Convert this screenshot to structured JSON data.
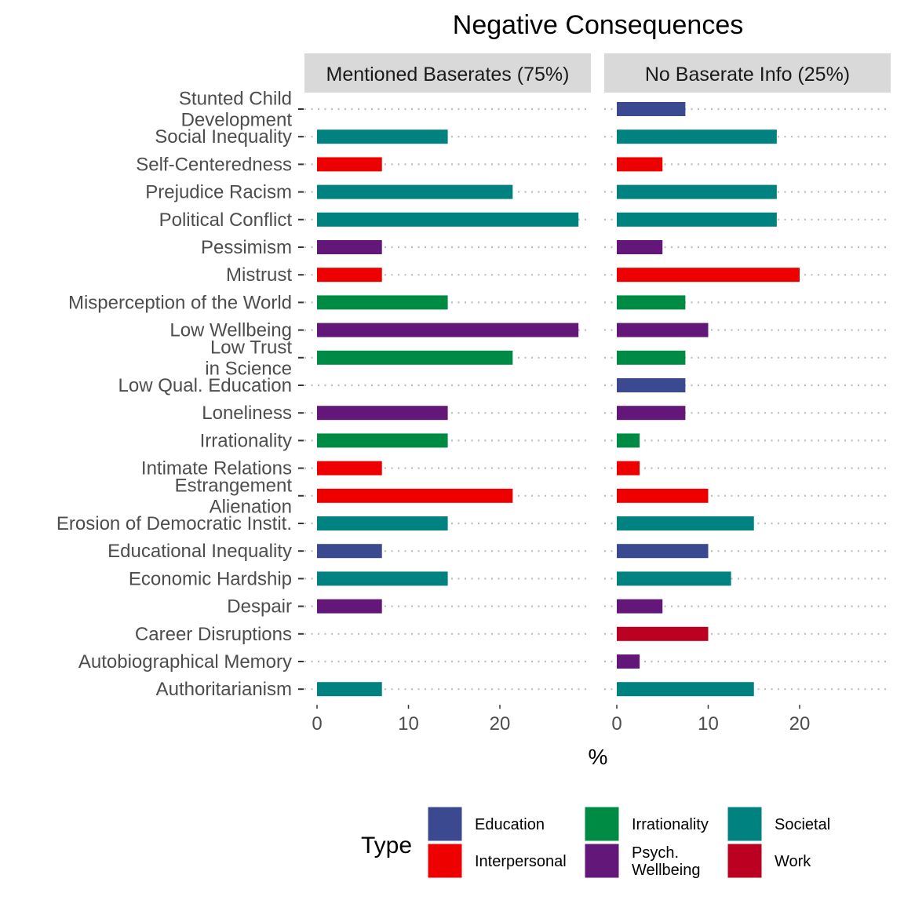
{
  "chart_data": {
    "type": "bar",
    "orientation": "horizontal",
    "title": "Negative Consequences",
    "xlabel": "%",
    "ylabel": "",
    "xlim": [
      0,
      28.8
    ],
    "x_ticks": [
      0,
      10,
      20
    ],
    "grid": "dotted horizontal",
    "legend_position": "bottom",
    "legend_title": "Type",
    "colors": {
      "Education": "#3b4991",
      "Interpersonal": "#ee0000",
      "Irrationality": "#008b45",
      "Psych. Wellbeing": "#631879",
      "Societal": "#008280",
      "Work": "#bb0021"
    },
    "legend": [
      {
        "type": "Education",
        "label": "Education"
      },
      {
        "type": "Interpersonal",
        "label": "Interpersonal"
      },
      {
        "type": "Irrationality",
        "label": "Irrationality"
      },
      {
        "type": "Psych. Wellbeing",
        "label": "Psych.\nWellbeing"
      },
      {
        "type": "Societal",
        "label": "Societal"
      },
      {
        "type": "Work",
        "label": "Work"
      }
    ],
    "categories": [
      "Stunted Child\nDevelopment",
      "Social Inequality",
      "Self-Centeredness",
      "Prejudice Racism",
      "Political Conflict",
      "Pessimism",
      "Mistrust",
      "Misperception of the World",
      "Low Wellbeing",
      "Low Trust\nin Science",
      "Low Qual. Education",
      "Loneliness",
      "Irrationality",
      "Intimate Relations",
      "Estrangement\nAlienation",
      "Erosion of Democratic Instit.",
      "Educational Inequality",
      "Economic Hardship",
      "Despair",
      "Career Disruptions",
      "Autobiographical Memory",
      "Authoritarianism"
    ],
    "category_types": [
      "Education",
      "Societal",
      "Interpersonal",
      "Societal",
      "Societal",
      "Psych. Wellbeing",
      "Interpersonal",
      "Irrationality",
      "Psych. Wellbeing",
      "Irrationality",
      "Education",
      "Psych. Wellbeing",
      "Irrationality",
      "Interpersonal",
      "Interpersonal",
      "Societal",
      "Education",
      "Societal",
      "Psych. Wellbeing",
      "Work",
      "Psych. Wellbeing",
      "Societal"
    ],
    "panels": [
      {
        "name": "Mentioned Baserates (75%)",
        "values": [
          0,
          14.3,
          7.1,
          21.4,
          28.6,
          7.1,
          7.1,
          14.3,
          28.6,
          21.4,
          0,
          14.3,
          14.3,
          7.1,
          21.4,
          14.3,
          7.1,
          14.3,
          7.1,
          0,
          0,
          7.1
        ]
      },
      {
        "name": "No Baserate Info (25%)",
        "values": [
          7.5,
          17.5,
          5.0,
          17.5,
          17.5,
          5.0,
          20.0,
          7.5,
          10.0,
          7.5,
          7.5,
          7.5,
          2.5,
          2.5,
          10.0,
          15.0,
          10.0,
          12.5,
          5.0,
          10.0,
          2.5,
          15.0
        ]
      }
    ]
  }
}
